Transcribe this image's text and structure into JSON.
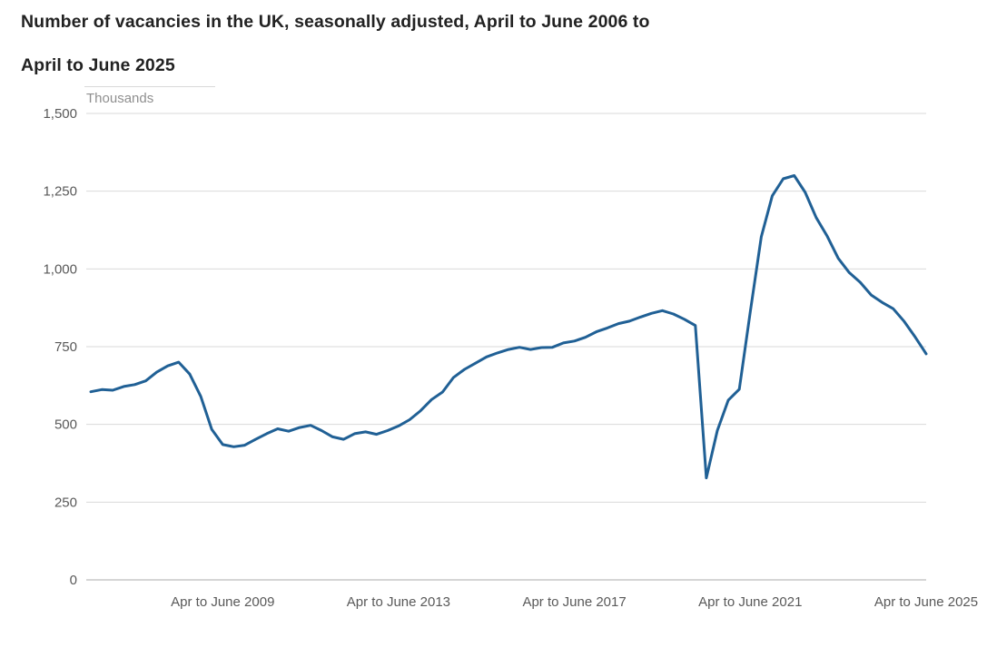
{
  "title": {
    "line1": "Number of vacancies in the UK, seasonally adjusted, April to June 2006 to",
    "line2": "April to June 2025"
  },
  "chart_data": {
    "type": "line",
    "title": "Number of vacancies in the UK, seasonally adjusted, April to June 2006 to April to June 2025",
    "unit_label": "Thousands",
    "xlabel": "",
    "ylabel": "Thousands",
    "ylim": [
      0,
      1500
    ],
    "yticks": [
      0,
      250,
      500,
      750,
      1000,
      1250,
      1500
    ],
    "ytick_labels": [
      "0",
      "250",
      "500",
      "750",
      "1,000",
      "1,250",
      "1,500"
    ],
    "xtick_labels": [
      "Apr to June 2009",
      "Apr to June 2013",
      "Apr to June 2017",
      "Apr to June 2021",
      "Apr to June 2025"
    ],
    "xtick_indices": [
      12,
      28,
      44,
      60,
      76
    ],
    "grid": "horizontal",
    "legend": "none",
    "colors": {
      "line": "#206095",
      "grid": "#d9d9d9",
      "axis": "#ababab",
      "tick_text": "#595959",
      "title_text": "#222222",
      "unit_text": "#8f8f8f"
    },
    "series": [
      {
        "name": "UK vacancies, seasonally adjusted (thousands)",
        "start": "Apr to June 2006",
        "end": "Apr to June 2025",
        "frequency": "quarterly",
        "values": [
          605,
          612,
          610,
          622,
          628,
          640,
          668,
          688,
          700,
          662,
          590,
          484,
          435,
          428,
          433,
          452,
          470,
          486,
          478,
          490,
          497,
          480,
          460,
          452,
          470,
          476,
          468,
          480,
          495,
          515,
          544,
          580,
          604,
          651,
          677,
          697,
          717,
          730,
          741,
          748,
          741,
          747,
          748,
          762,
          768,
          780,
          798,
          810,
          824,
          832,
          845,
          857,
          866,
          855,
          838,
          818,
          328,
          480,
          578,
          613,
          862,
          1103,
          1235,
          1290,
          1300,
          1246,
          1165,
          1105,
          1034,
          988,
          957,
          916,
          892,
          872,
          831,
          781,
          727
        ]
      }
    ]
  }
}
